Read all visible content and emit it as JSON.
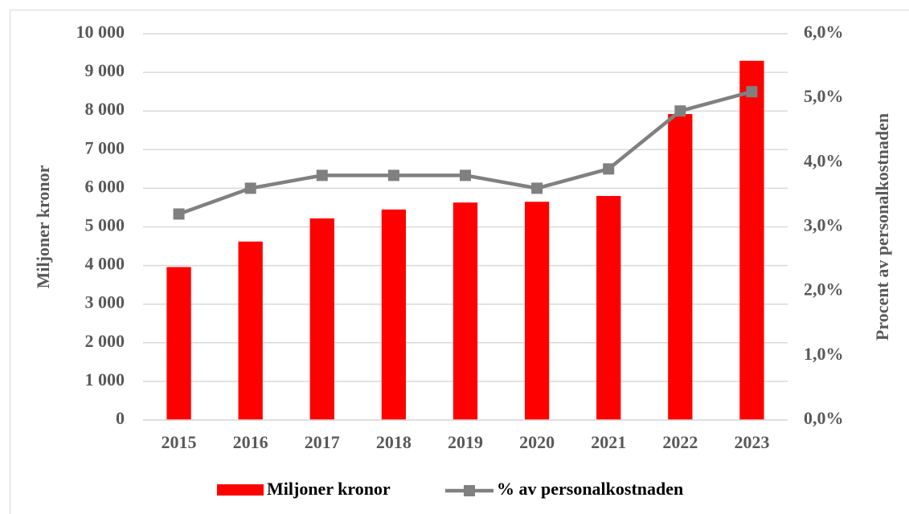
{
  "chart_data": {
    "type": "bar_line",
    "categories": [
      "2015",
      "2016",
      "2017",
      "2018",
      "2019",
      "2020",
      "2021",
      "2022",
      "2023"
    ],
    "series": [
      {
        "name": "Miljoner kronor",
        "type": "bar",
        "color": "#ff0000",
        "axis": "y",
        "values": [
          3960,
          4620,
          5220,
          5450,
          5630,
          5650,
          5800,
          7920,
          9300
        ]
      },
      {
        "name": "% av personalkostnaden",
        "type": "line",
        "color": "#808080",
        "axis": "y2",
        "values": [
          3.2,
          3.6,
          3.8,
          3.8,
          3.8,
          3.6,
          3.9,
          4.8,
          5.1
        ]
      }
    ],
    "ylabel": "Miljoner kronor",
    "y2label": "Procent av personalkostnaden",
    "ylim": [
      0,
      10000
    ],
    "yticks": [
      0,
      {
        "value": 1000,
        "label": "1 000"
      },
      {
        "value": 2000,
        "label": "2 000"
      },
      {
        "value": 3000,
        "label": "3 000"
      },
      {
        "value": 4000,
        "label": "4 000"
      },
      {
        "value": 5000,
        "label": "5 000"
      },
      {
        "value": 6000,
        "label": "6 000"
      },
      {
        "value": 7000,
        "label": "7 000"
      },
      {
        "value": 8000,
        "label": "8 000"
      },
      {
        "value": 9000,
        "label": "9 000"
      },
      {
        "value": 10000,
        "label": "10 000"
      }
    ],
    "y2lim": [
      0,
      6
    ],
    "y2ticks": [
      {
        "value": 0,
        "label": "0,0%"
      },
      {
        "value": 1,
        "label": "1,0%"
      },
      {
        "value": 2,
        "label": "2,0%"
      },
      {
        "value": 3,
        "label": "3,0%"
      },
      {
        "value": 4,
        "label": "4,0%"
      },
      {
        "value": 5,
        "label": "5,0%"
      },
      {
        "value": 6,
        "label": "6,0%"
      }
    ],
    "grid": true,
    "legend": "bottom"
  }
}
